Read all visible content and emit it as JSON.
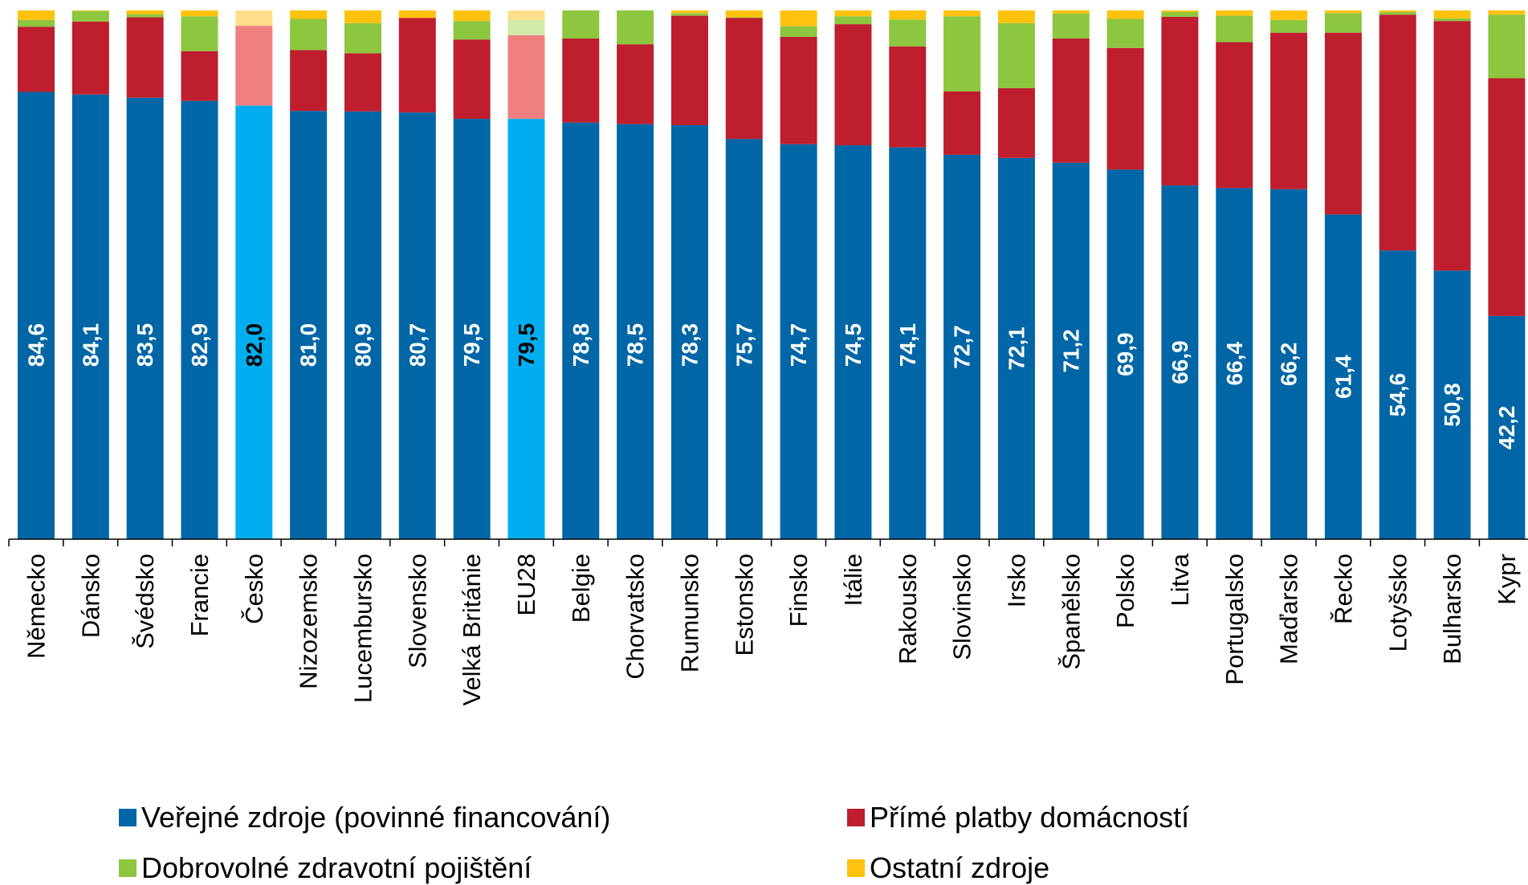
{
  "chart_data": {
    "type": "bar",
    "stacked": true,
    "ylim": [
      0,
      100
    ],
    "grid": false,
    "legend_position": "bottom",
    "categories": [
      "Německo",
      "Dánsko",
      "Švédsko",
      "Francie",
      "Česko",
      "Nizozemsko",
      "Lucembursko",
      "Slovensko",
      "Velká Británie",
      "EU28",
      "Belgie",
      "Chorvatsko",
      "Rumunsko",
      "Estonsko",
      "Finsko",
      "Itálie",
      "Rakousko",
      "Slovinsko",
      "Irsko",
      "Španělsko",
      "Polsko",
      "Litva",
      "Portugalsko",
      "Maďarsko",
      "Řecko",
      "Lotyšsko",
      "Bulharsko",
      "Kypr"
    ],
    "highlighted_categories": [
      "Česko",
      "EU28"
    ],
    "series": [
      {
        "name": "Veřejné zdroje (povinné financování)",
        "color": "#0066A6",
        "highlight_color": "#00AEEF",
        "values": [
          84.6,
          84.1,
          83.5,
          82.9,
          82.0,
          81.0,
          80.9,
          80.7,
          79.5,
          79.5,
          78.8,
          78.5,
          78.3,
          75.7,
          74.7,
          74.5,
          74.1,
          72.7,
          72.1,
          71.2,
          69.9,
          66.9,
          66.4,
          66.2,
          61.4,
          54.6,
          50.8,
          42.2
        ],
        "labels": [
          "84,6",
          "84,1",
          "83,5",
          "82,9",
          "82,0",
          "81,0",
          "80,9",
          "80,7",
          "79,5",
          "79,5",
          "78,8",
          "78,5",
          "78,3",
          "75,7",
          "74,7",
          "74,5",
          "74,1",
          "72,7",
          "72,1",
          "71,2",
          "69,9",
          "66,9",
          "66,4",
          "66,2",
          "61,4",
          "54,6",
          "50,8",
          "42,2"
        ]
      },
      {
        "name": "Přímé platby domácností",
        "color": "#BE1E2D",
        "highlight_color": "#F08080",
        "values": [
          12.3,
          13.8,
          15.2,
          9.4,
          15.1,
          11.5,
          11.0,
          17.9,
          15.0,
          15.8,
          15.9,
          15.1,
          20.7,
          22.9,
          20.3,
          22.9,
          19.1,
          12.0,
          13.2,
          23.5,
          23.0,
          31.9,
          27.6,
          29.6,
          34.4,
          44.6,
          47.2,
          45.0
        ]
      },
      {
        "name": "Dobrovolné zdravotní pojištění",
        "color": "#8DC63F",
        "highlight_color": "#D2EAA8",
        "values": [
          1.3,
          2.0,
          0.6,
          6.6,
          0,
          5.9,
          5.7,
          0,
          3.5,
          2.9,
          5.3,
          6.4,
          0.5,
          0.1,
          2.0,
          1.5,
          5.1,
          14.2,
          12.3,
          4.7,
          5.5,
          0.9,
          5.0,
          2.4,
          3.7,
          0.5,
          0.5,
          12.0
        ]
      },
      {
        "name": "Ostatní zdroje",
        "color": "#FFC20E",
        "highlight_color": "#FFE08A",
        "values": [
          1.8,
          0.1,
          0.7,
          1.1,
          2.9,
          1.6,
          2.4,
          1.4,
          2.0,
          1.8,
          0,
          0,
          0.5,
          1.3,
          3.0,
          1.1,
          1.7,
          1.1,
          2.4,
          0.6,
          1.6,
          0.3,
          1.0,
          1.8,
          0.5,
          0.3,
          1.5,
          0.8
        ]
      }
    ]
  }
}
